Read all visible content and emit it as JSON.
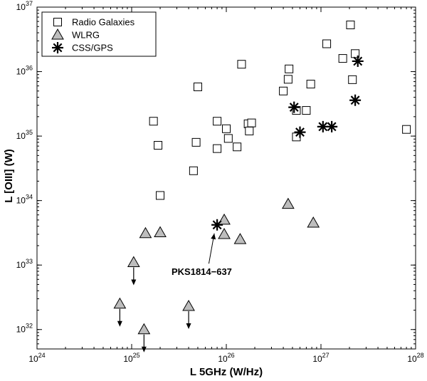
{
  "chart_data": {
    "type": "scatter",
    "x_scale": "log",
    "y_scale": "log",
    "xlim": [
      1e+24,
      1e+28
    ],
    "ylim": [
      5e+31,
      1e+37
    ],
    "xlabel": "L 5GHz (W/Hz)",
    "ylabel": "L [OIII] (W)",
    "x_ticks": [
      {
        "value": 1e+24,
        "base": "10",
        "exp": "24"
      },
      {
        "value": 1e+25,
        "base": "10",
        "exp": "25"
      },
      {
        "value": 1e+26,
        "base": "10",
        "exp": "26"
      },
      {
        "value": 1e+27,
        "base": "10",
        "exp": "27"
      },
      {
        "value": 1e+28,
        "base": "10",
        "exp": "28"
      }
    ],
    "y_ticks": [
      {
        "value": 1e+32,
        "base": "10",
        "exp": "32"
      },
      {
        "value": 1e+33,
        "base": "10",
        "exp": "33"
      },
      {
        "value": 1e+34,
        "base": "10",
        "exp": "34"
      },
      {
        "value": 1e+35,
        "base": "10",
        "exp": "35"
      },
      {
        "value": 1e+36,
        "base": "10",
        "exp": "36"
      },
      {
        "value": 1e+37,
        "base": "10",
        "exp": "37"
      }
    ],
    "legend_position": "top-left",
    "series": [
      {
        "name": "Radio Galaxies",
        "marker": "square",
        "points": [
          {
            "x": 1.7e+25,
            "y": 1.7e+35
          },
          {
            "x": 1.9e+25,
            "y": 7.2e+34
          },
          {
            "x": 2e+25,
            "y": 1.2e+34
          },
          {
            "x": 4.5e+25,
            "y": 2.9e+34
          },
          {
            "x": 4.8e+25,
            "y": 8e+34
          },
          {
            "x": 5e+25,
            "y": 5.8e+35
          },
          {
            "x": 8e+25,
            "y": 1.7e+35
          },
          {
            "x": 8e+25,
            "y": 6.4e+34
          },
          {
            "x": 1e+26,
            "y": 1.3e+35
          },
          {
            "x": 1.05e+26,
            "y": 9.2e+34
          },
          {
            "x": 1.3e+26,
            "y": 6.8e+34
          },
          {
            "x": 1.45e+26,
            "y": 1.3e+36
          },
          {
            "x": 1.7e+26,
            "y": 1.55e+35
          },
          {
            "x": 1.75e+26,
            "y": 1.2e+35
          },
          {
            "x": 1.85e+26,
            "y": 1.6e+35
          },
          {
            "x": 4e+26,
            "y": 5e+35
          },
          {
            "x": 4.5e+26,
            "y": 7.6e+35
          },
          {
            "x": 4.6e+26,
            "y": 1.1e+36
          },
          {
            "x": 5.5e+26,
            "y": 9.7e+34
          },
          {
            "x": 5.5e+26,
            "y": 2.5e+35
          },
          {
            "x": 7e+26,
            "y": 2.5e+35
          },
          {
            "x": 7.8e+26,
            "y": 6.4e+35
          },
          {
            "x": 1.15e+27,
            "y": 2.7e+36
          },
          {
            "x": 1.7e+27,
            "y": 1.6e+36
          },
          {
            "x": 2.05e+27,
            "y": 5.3e+36
          },
          {
            "x": 2.15e+27,
            "y": 7.5e+35
          },
          {
            "x": 2.3e+27,
            "y": 1.9e+36
          },
          {
            "x": 8e+27,
            "y": 1.27e+35
          }
        ]
      },
      {
        "name": "WLRG",
        "marker": "triangle",
        "points": [
          {
            "x": 7.5e+24,
            "y": 2.5e+32,
            "upper_limit": true
          },
          {
            "x": 1.05e+25,
            "y": 1.1e+33,
            "upper_limit": true
          },
          {
            "x": 1.35e+25,
            "y": 1e+32,
            "upper_limit": true
          },
          {
            "x": 1.4e+25,
            "y": 3.1e+33
          },
          {
            "x": 2e+25,
            "y": 3.2e+33
          },
          {
            "x": 4e+25,
            "y": 2.3e+32,
            "upper_limit": true
          },
          {
            "x": 9.5e+25,
            "y": 5e+33
          },
          {
            "x": 9.5e+25,
            "y": 3e+33
          },
          {
            "x": 1.4e+26,
            "y": 2.5e+33
          },
          {
            "x": 4.5e+26,
            "y": 8.8e+33
          },
          {
            "x": 8.3e+26,
            "y": 4.5e+33
          }
        ]
      },
      {
        "name": "CSS/GPS",
        "marker": "asterisk",
        "points": [
          {
            "x": 8e+25,
            "y": 4.2e+33
          },
          {
            "x": 5.2e+26,
            "y": 2.8e+35
          },
          {
            "x": 6e+26,
            "y": 1.15e+35
          },
          {
            "x": 1.05e+27,
            "y": 1.4e+35
          },
          {
            "x": 1.3e+27,
            "y": 1.4e+35
          },
          {
            "x": 2.3e+27,
            "y": 3.6e+35
          },
          {
            "x": 2.45e+27,
            "y": 1.45e+36
          }
        ]
      }
    ],
    "annotations": [
      {
        "text": "PKS1814−637",
        "points_to": {
          "x": 8e+25,
          "y": 4.2e+33
        },
        "text_at": {
          "x": 5.5e+25,
          "y": 7e+32
        }
      }
    ]
  }
}
